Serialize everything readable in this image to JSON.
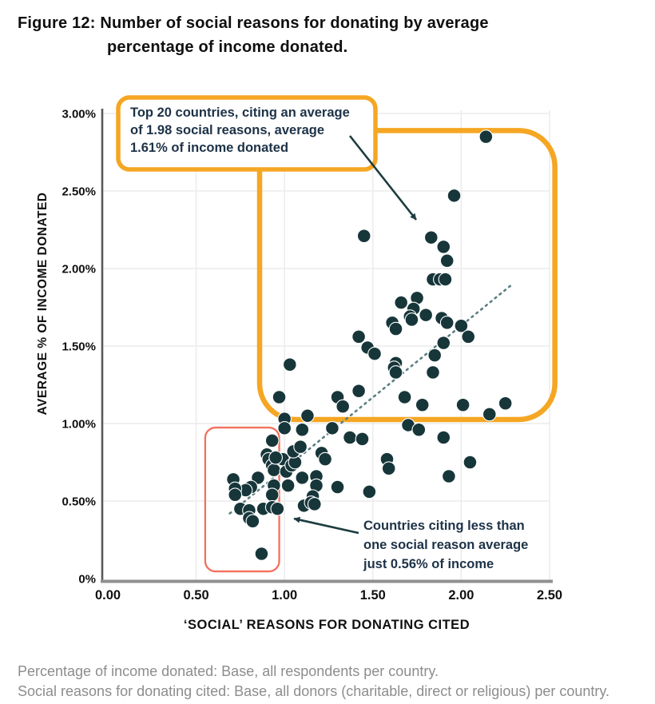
{
  "title": {
    "line1": "Figure 12: Number of social reasons for donating by average",
    "line2": "percentage of income donated."
  },
  "footer": {
    "line1": "Percentage of income donated: Base, all respondents per country.",
    "line2": "Social reasons for donating cited: Base, all donors (charitable, direct or religious) per country."
  },
  "chart_data": {
    "type": "scatter",
    "title": "Figure 12: Number of social reasons for donating by average percentage of income donated.",
    "xlabel": "‘SOCIAL’ REASONS FOR DONATING CITED",
    "ylabel": "AVERAGE % OF INCOME DONATED",
    "xlim": [
      0,
      2.5
    ],
    "ylim": [
      0,
      3.0
    ],
    "x_ticks": [
      "0.00",
      "0.50",
      "1.00",
      "1.50",
      "2.00",
      "2.50"
    ],
    "y_ticks": [
      "0%",
      "0.50%",
      "1.00%",
      "1.50%",
      "2.00%",
      "2.50%",
      "3.00%"
    ],
    "grid": true,
    "point_color": "#17363a",
    "points": [
      [
        2.14,
        2.85
      ],
      [
        1.96,
        2.47
      ],
      [
        1.45,
        2.21
      ],
      [
        1.83,
        2.2
      ],
      [
        1.9,
        2.14
      ],
      [
        1.92,
        2.05
      ],
      [
        1.84,
        1.93
      ],
      [
        1.88,
        1.93
      ],
      [
        1.91,
        1.93
      ],
      [
        1.75,
        1.81
      ],
      [
        1.66,
        1.78
      ],
      [
        1.73,
        1.74
      ],
      [
        1.71,
        1.69
      ],
      [
        1.72,
        1.67
      ],
      [
        1.8,
        1.7
      ],
      [
        1.61,
        1.65
      ],
      [
        1.63,
        1.61
      ],
      [
        1.89,
        1.68
      ],
      [
        1.92,
        1.65
      ],
      [
        2.0,
        1.63
      ],
      [
        1.42,
        1.56
      ],
      [
        2.04,
        1.56
      ],
      [
        1.9,
        1.52
      ],
      [
        1.47,
        1.49
      ],
      [
        1.51,
        1.45
      ],
      [
        1.85,
        1.44
      ],
      [
        1.03,
        1.38
      ],
      [
        1.63,
        1.39
      ],
      [
        1.62,
        1.36
      ],
      [
        1.63,
        1.33
      ],
      [
        1.84,
        1.33
      ],
      [
        0.97,
        1.17
      ],
      [
        1.3,
        1.17
      ],
      [
        1.42,
        1.21
      ],
      [
        1.33,
        1.11
      ],
      [
        1.68,
        1.17
      ],
      [
        1.78,
        1.12
      ],
      [
        2.01,
        1.12
      ],
      [
        2.25,
        1.13
      ],
      [
        2.16,
        1.06
      ],
      [
        1.13,
        1.05
      ],
      [
        1.0,
        1.03
      ],
      [
        1.0,
        0.97
      ],
      [
        1.1,
        0.96
      ],
      [
        0.93,
        0.89
      ],
      [
        1.27,
        0.97
      ],
      [
        1.37,
        0.91
      ],
      [
        1.44,
        0.9
      ],
      [
        1.7,
        0.99
      ],
      [
        1.76,
        0.96
      ],
      [
        1.9,
        0.91
      ],
      [
        0.9,
        0.8
      ],
      [
        0.91,
        0.77
      ],
      [
        0.99,
        0.77
      ],
      [
        0.93,
        0.73
      ],
      [
        0.94,
        0.7
      ],
      [
        1.01,
        0.69
      ],
      [
        1.04,
        0.73
      ],
      [
        1.06,
        0.75
      ],
      [
        1.05,
        0.82
      ],
      [
        1.09,
        0.85
      ],
      [
        1.21,
        0.81
      ],
      [
        1.23,
        0.77
      ],
      [
        0.95,
        0.78
      ],
      [
        0.71,
        0.64
      ],
      [
        0.85,
        0.65
      ],
      [
        0.81,
        0.59
      ],
      [
        0.78,
        0.57
      ],
      [
        0.72,
        0.58
      ],
      [
        0.72,
        0.54
      ],
      [
        0.94,
        0.6
      ],
      [
        0.93,
        0.54
      ],
      [
        1.02,
        0.6
      ],
      [
        1.1,
        0.65
      ],
      [
        1.18,
        0.66
      ],
      [
        1.18,
        0.6
      ],
      [
        1.3,
        0.59
      ],
      [
        1.16,
        0.53
      ],
      [
        1.11,
        0.47
      ],
      [
        1.15,
        0.49
      ],
      [
        1.17,
        0.48
      ],
      [
        0.75,
        0.45
      ],
      [
        0.8,
        0.44
      ],
      [
        0.88,
        0.45
      ],
      [
        0.93,
        0.46
      ],
      [
        0.96,
        0.45
      ],
      [
        0.8,
        0.39
      ],
      [
        0.82,
        0.37
      ],
      [
        0.87,
        0.16
      ],
      [
        1.58,
        0.77
      ],
      [
        1.59,
        0.71
      ],
      [
        1.48,
        0.56
      ],
      [
        2.05,
        0.75
      ],
      [
        1.93,
        0.66
      ]
    ],
    "trend_line": {
      "style": "dotted",
      "color": "#5c7f82",
      "from": [
        0.69,
        0.42
      ],
      "to": [
        2.28,
        1.89
      ]
    },
    "highlights": [
      {
        "name": "top-20-countries-region",
        "color": "#F5A623",
        "stroke_width": 6.5,
        "radius": 45,
        "x_range": [
          0.859,
          2.53
        ],
        "y_range": [
          1.026,
          2.89
        ]
      },
      {
        "name": "less-than-one-reason-region",
        "color": "#F4705E",
        "stroke_width": 2.3,
        "radius": 13,
        "x_range": [
          0.551,
          0.97
        ],
        "y_range": [
          0.046,
          0.974
        ]
      }
    ],
    "annotations": [
      {
        "id": "top_box",
        "lines": [
          "Top 20 countries, citing an average",
          "of 1.98 social reasons, average",
          "1.61% of income donated"
        ]
      },
      {
        "id": "bottom_note",
        "lines": [
          "Countries citing less than",
          "one social reason average",
          "just 0.56% of income"
        ]
      }
    ]
  }
}
